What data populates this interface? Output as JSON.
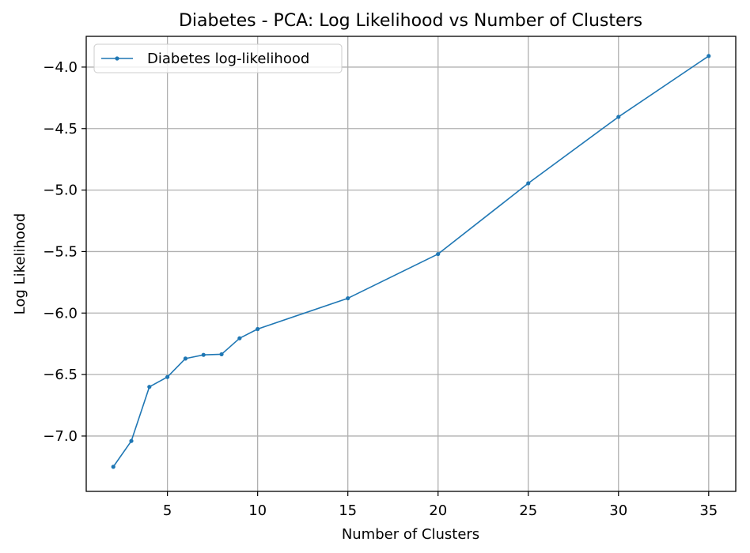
{
  "chart_data": {
    "type": "line",
    "title": "Diabetes - PCA: Log Likelihood vs Number of Clusters",
    "xlabel": "Number of Clusters",
    "ylabel": "Log Likelihood",
    "xlim": [
      0.5,
      36.5
    ],
    "ylim": [
      -7.45,
      -3.75
    ],
    "xticks": [
      5,
      10,
      15,
      20,
      25,
      30,
      35
    ],
    "xtick_labels": [
      "5",
      "10",
      "15",
      "20",
      "25",
      "30",
      "35"
    ],
    "yticks": [
      -7.0,
      -6.5,
      -6.0,
      -5.5,
      -5.0,
      -4.5,
      -4.0
    ],
    "ytick_labels": [
      "−7.0",
      "−6.5",
      "−6.0",
      "−5.5",
      "−5.0",
      "−4.5",
      "−4.0"
    ],
    "grid": true,
    "legend_position": "top-left",
    "series": [
      {
        "name": "Diabetes log-likelihood",
        "color": "#1f77b4",
        "marker": "circle",
        "x": [
          2,
          3,
          4,
          5,
          6,
          7,
          8,
          9,
          10,
          15,
          20,
          25,
          30,
          35
        ],
        "y": [
          -7.25,
          -7.04,
          -6.6,
          -6.52,
          -6.37,
          -6.34,
          -6.335,
          -6.205,
          -6.13,
          -5.88,
          -5.52,
          -4.945,
          -4.405,
          -3.91
        ]
      }
    ]
  }
}
